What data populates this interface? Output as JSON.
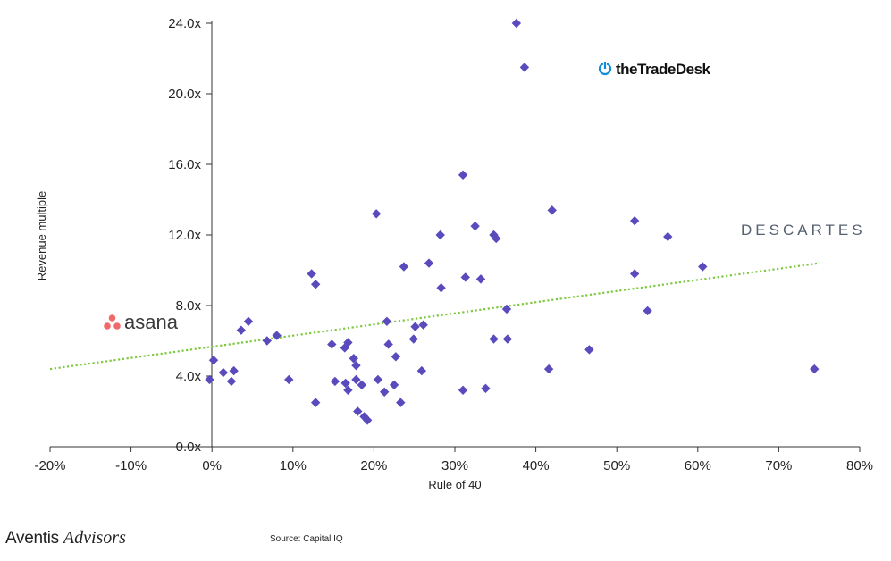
{
  "chart_data": {
    "type": "scatter",
    "xlabel": "Rule of 40",
    "ylabel": "Revenue multiple",
    "xlim": [
      -0.2,
      0.8
    ],
    "ylim": [
      0,
      24
    ],
    "x_ticks": [
      -0.2,
      -0.1,
      0,
      0.1,
      0.2,
      0.3,
      0.4,
      0.5,
      0.6,
      0.7,
      0.8
    ],
    "x_tick_labels": [
      "-20%",
      "-10%",
      "0%",
      "10%",
      "20%",
      "30%",
      "40%",
      "50%",
      "60%",
      "70%",
      "80%"
    ],
    "y_ticks": [
      0,
      4,
      8,
      12,
      16,
      20,
      24
    ],
    "y_tick_labels": [
      "0.0x",
      "4.0x",
      "8.0x",
      "12.0x",
      "16.0x",
      "20.0x",
      "24.0x"
    ],
    "grid": false,
    "marker": "diamond",
    "point_color": "#5a4bbd",
    "trendline_color": "#7dc83c",
    "trendline": {
      "x": [
        -0.2,
        0.75
      ],
      "y": [
        4.4,
        10.4
      ],
      "style": "dotted"
    },
    "points": [
      {
        "x": -0.003,
        "y": 3.8
      },
      {
        "x": 0.002,
        "y": 4.9
      },
      {
        "x": 0.014,
        "y": 4.2
      },
      {
        "x": 0.024,
        "y": 3.7
      },
      {
        "x": 0.027,
        "y": 4.3
      },
      {
        "x": 0.036,
        "y": 6.6
      },
      {
        "x": 0.045,
        "y": 7.1
      },
      {
        "x": 0.068,
        "y": 6.0
      },
      {
        "x": 0.08,
        "y": 6.3
      },
      {
        "x": 0.095,
        "y": 3.8
      },
      {
        "x": 0.123,
        "y": 9.8
      },
      {
        "x": 0.128,
        "y": 9.2
      },
      {
        "x": 0.128,
        "y": 2.5
      },
      {
        "x": 0.148,
        "y": 5.8
      },
      {
        "x": 0.152,
        "y": 3.7
      },
      {
        "x": 0.164,
        "y": 5.6
      },
      {
        "x": 0.168,
        "y": 5.9
      },
      {
        "x": 0.165,
        "y": 3.6
      },
      {
        "x": 0.168,
        "y": 3.2
      },
      {
        "x": 0.175,
        "y": 5.0
      },
      {
        "x": 0.178,
        "y": 4.6
      },
      {
        "x": 0.178,
        "y": 3.8
      },
      {
        "x": 0.18,
        "y": 2.0
      },
      {
        "x": 0.185,
        "y": 3.5
      },
      {
        "x": 0.188,
        "y": 1.7
      },
      {
        "x": 0.192,
        "y": 1.5
      },
      {
        "x": 0.203,
        "y": 13.2
      },
      {
        "x": 0.205,
        "y": 3.8
      },
      {
        "x": 0.213,
        "y": 3.1
      },
      {
        "x": 0.216,
        "y": 7.1
      },
      {
        "x": 0.218,
        "y": 5.8
      },
      {
        "x": 0.225,
        "y": 3.5
      },
      {
        "x": 0.227,
        "y": 5.1
      },
      {
        "x": 0.233,
        "y": 2.5
      },
      {
        "x": 0.237,
        "y": 10.2
      },
      {
        "x": 0.249,
        "y": 6.1
      },
      {
        "x": 0.251,
        "y": 6.8
      },
      {
        "x": 0.259,
        "y": 4.3
      },
      {
        "x": 0.261,
        "y": 6.9
      },
      {
        "x": 0.268,
        "y": 10.4
      },
      {
        "x": 0.282,
        "y": 12.0
      },
      {
        "x": 0.283,
        "y": 9.0
      },
      {
        "x": 0.31,
        "y": 15.4
      },
      {
        "x": 0.31,
        "y": 3.2
      },
      {
        "x": 0.313,
        "y": 9.6
      },
      {
        "x": 0.325,
        "y": 12.5
      },
      {
        "x": 0.332,
        "y": 9.5
      },
      {
        "x": 0.338,
        "y": 3.3
      },
      {
        "x": 0.348,
        "y": 12.0
      },
      {
        "x": 0.351,
        "y": 11.8
      },
      {
        "x": 0.348,
        "y": 6.1
      },
      {
        "x": 0.364,
        "y": 7.8
      },
      {
        "x": 0.365,
        "y": 6.1
      },
      {
        "x": 0.376,
        "y": 24.0
      },
      {
        "x": 0.386,
        "y": 21.5
      },
      {
        "x": 0.416,
        "y": 4.4
      },
      {
        "x": 0.42,
        "y": 13.4
      },
      {
        "x": 0.466,
        "y": 5.5
      },
      {
        "x": 0.522,
        "y": 12.8
      },
      {
        "x": 0.522,
        "y": 9.8
      },
      {
        "x": 0.538,
        "y": 7.7
      },
      {
        "x": 0.563,
        "y": 11.9
      },
      {
        "x": 0.606,
        "y": 10.2
      },
      {
        "x": 0.744,
        "y": 4.4
      }
    ]
  },
  "logos": {
    "tradedesk": {
      "text": "theTradeDesk",
      "icon": "power-icon",
      "color": "#0f8bd8"
    },
    "descartes": {
      "text": "DESCARTES"
    },
    "asana": {
      "text": "asana",
      "icon": "three-dots-icon",
      "color": "#f06a6a"
    }
  },
  "footer": {
    "brand_part1": "Aventis",
    "brand_part2": "Advisors",
    "source": "Source: Capital IQ"
  }
}
